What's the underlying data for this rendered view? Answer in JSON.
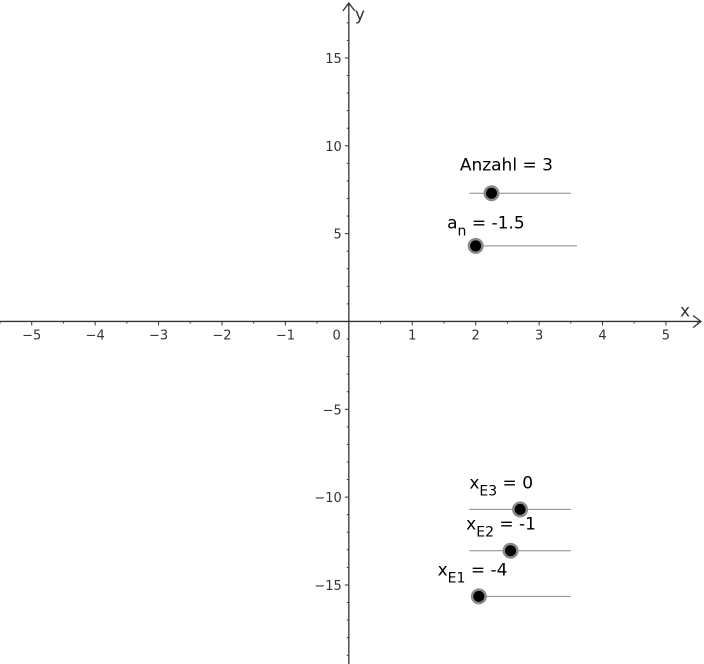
{
  "chart_data": {
    "type": "scatter",
    "xlabel": "x",
    "ylabel": "y",
    "xlim": [
      -5.5,
      5.6
    ],
    "ylim": [
      -19.5,
      18.3
    ],
    "x_ticks": [
      -5,
      -4,
      -3,
      -2,
      -1,
      0,
      1,
      2,
      3,
      4,
      5
    ],
    "y_ticks": [
      -15,
      -10,
      -5,
      5,
      10,
      15
    ],
    "origin_label": "0",
    "grid": false
  },
  "sliders": [
    {
      "id": "anzahl",
      "base": "Anzahl",
      "sub": "",
      "value_text": " = 3",
      "track": [
        1.9,
        3.5
      ],
      "knob": [
        2.25,
        7.3
      ],
      "label_anchor": [
        1.75,
        8.6
      ]
    },
    {
      "id": "a_n",
      "base": "a",
      "sub": "n",
      "value_text": " = -1.5",
      "track": [
        1.9,
        3.6
      ],
      "knob": [
        2.0,
        4.3
      ],
      "label_anchor": [
        1.55,
        5.3
      ]
    },
    {
      "id": "x_e3",
      "base": "x",
      "sub": "E3",
      "value_text": " = 0",
      "track": [
        1.9,
        3.5
      ],
      "knob": [
        2.7,
        -10.7
      ],
      "label_anchor": [
        1.9,
        -9.5
      ]
    },
    {
      "id": "x_e2",
      "base": "x",
      "sub": "E2",
      "value_text": " = -1",
      "track": [
        1.9,
        3.5
      ],
      "knob": [
        2.55,
        -13.05
      ],
      "label_anchor": [
        1.85,
        -11.85
      ]
    },
    {
      "id": "x_e1",
      "base": "x",
      "sub": "E1",
      "value_text": " = -4",
      "track": [
        2.0,
        3.5
      ],
      "knob": [
        2.05,
        -15.65
      ],
      "label_anchor": [
        1.4,
        -14.45
      ]
    }
  ]
}
